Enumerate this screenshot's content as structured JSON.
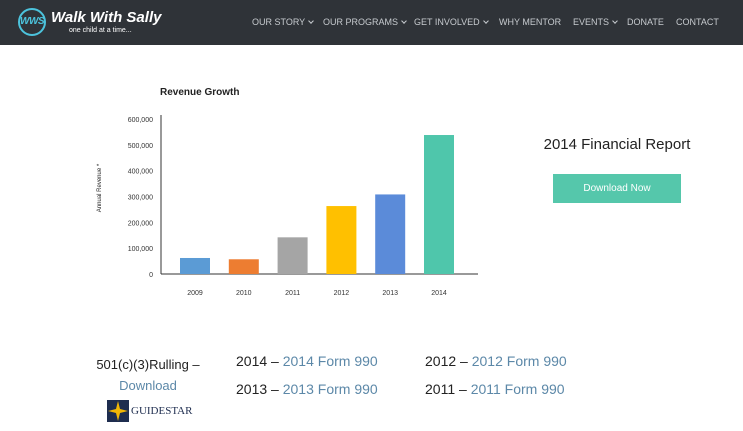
{
  "header": {
    "logo_badge": "WWS",
    "logo_name": "Walk With Sally",
    "logo_tagline": "one child at a time...",
    "nav": [
      {
        "label": "OUR STORY",
        "dropdown": true
      },
      {
        "label": "OUR PROGRAMS",
        "dropdown": true
      },
      {
        "label": "GET INVOLVED",
        "dropdown": true
      },
      {
        "label": "WHY MENTOR",
        "dropdown": false
      },
      {
        "label": "EVENTS",
        "dropdown": true
      },
      {
        "label": "DONATE",
        "dropdown": false
      },
      {
        "label": "CONTACT",
        "dropdown": false
      }
    ]
  },
  "chart_data": {
    "type": "bar",
    "title": "Revenue Growth",
    "xlabel": "",
    "ylabel": "Annual Revenue *",
    "categories": [
      "2009",
      "2010",
      "2011",
      "2012",
      "2013",
      "2014"
    ],
    "values": [
      62000,
      57000,
      142000,
      263000,
      308000,
      538000
    ],
    "colors": [
      "#5b9bd5",
      "#ed7d31",
      "#a5a5a5",
      "#ffc000",
      "#5b8bd9",
      "#4fc6ab"
    ],
    "ylim": [
      0,
      600000
    ],
    "yticks": [
      0,
      100000,
      200000,
      300000,
      400000,
      500000,
      600000
    ],
    "ytick_labels": [
      "0",
      "100,000",
      "200,000",
      "300,000",
      "400,000",
      "500,000",
      "600,000"
    ],
    "grid": false,
    "legend": "none"
  },
  "report": {
    "title": "2014 Financial Report",
    "download_label": "Download Now"
  },
  "rulling": {
    "text": "501(c)(3)Rulling –",
    "link": "Download"
  },
  "guidestar": {
    "label": "GUIDESTAR"
  },
  "forms": [
    {
      "year": "2014",
      "link": "2014 Form 990"
    },
    {
      "year": "2013",
      "link": "2013 Form 990"
    },
    {
      "year": "2012",
      "link": "2012 Form 990"
    },
    {
      "year": "2011",
      "link": "2011 Form 990"
    }
  ],
  "colors": {
    "header_bg": "#2f3338",
    "accent": "#55c7ab",
    "link": "#5c88a8"
  }
}
